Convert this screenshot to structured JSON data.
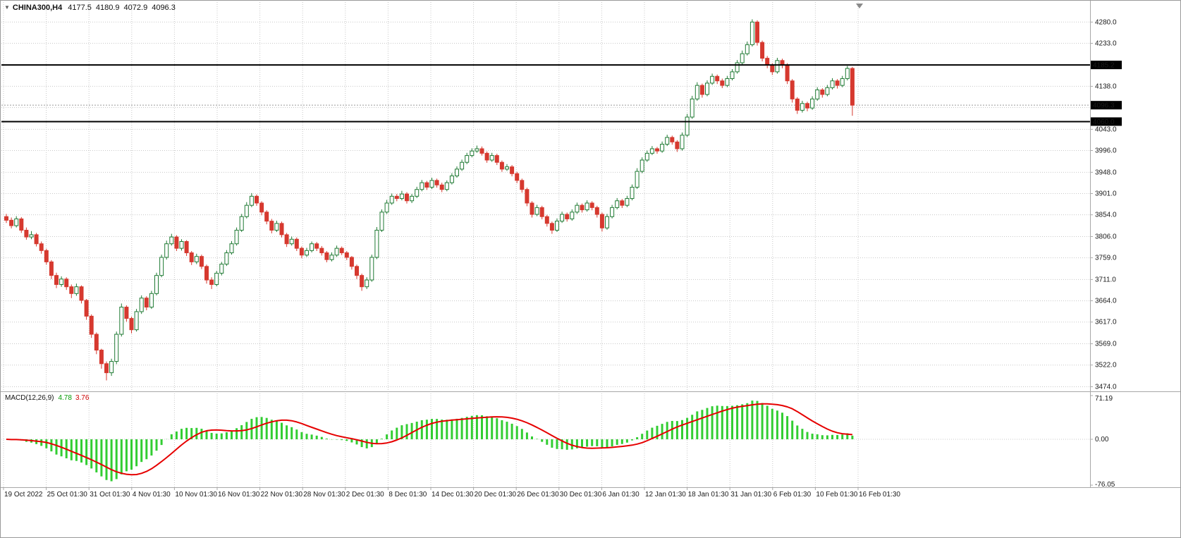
{
  "header": {
    "dropdown_icon": "triangle-down",
    "symbol_period": "CHINA300,H4",
    "open": "4177.5",
    "high": "4180.9",
    "low": "4072.9",
    "close": "4096.3"
  },
  "colors": {
    "background": "#ffffff",
    "grid": "#c8c8c8",
    "axis_line": "#a8a8a8",
    "text": "#1a1a1a",
    "candle_up_fill": "#ffffff",
    "candle_up_border": "#1f7a33",
    "candle_down_fill": "#d6392f",
    "candle_down_border": "#d6392f",
    "macd_histogram": "#32cd32",
    "macd_signal": "#e60000",
    "hline": "#000000",
    "bid_line": "#9a9a9a",
    "badge_bg": "#000000",
    "badge_text": "#ffffff",
    "shift_marker": "#8a8a8a"
  },
  "chart_data": {
    "type": "candlestick",
    "title": "CHINA300,H4",
    "symbol": "CHINA300",
    "timeframe": "H4",
    "ohlc_display": {
      "open": 4177.5,
      "high": 4180.9,
      "low": 4072.9,
      "close": 4096.3
    },
    "price_axis": {
      "max_visible": 4296,
      "min_visible": 3467,
      "gridlines": [
        {
          "v": 4280,
          "t": "4280.0"
        },
        {
          "v": 4233,
          "t": "4233.0"
        },
        {
          "v": 4185,
          "t": ""
        },
        {
          "v": 4138,
          "t": "4138.0"
        },
        {
          "v": 4091,
          "t": ""
        },
        {
          "v": 4043,
          "t": "4043.0"
        },
        {
          "v": 3996,
          "t": "3996.0"
        },
        {
          "v": 3948,
          "t": "3948.0"
        },
        {
          "v": 3901,
          "t": "3901.0"
        },
        {
          "v": 3854,
          "t": "3854.0"
        },
        {
          "v": 3806,
          "t": "3806.0"
        },
        {
          "v": 3759,
          "t": "3759.0"
        },
        {
          "v": 3711,
          "t": "3711.0"
        },
        {
          "v": 3664,
          "t": "3664.0"
        },
        {
          "v": 3617,
          "t": "3617.0"
        },
        {
          "v": 3569,
          "t": "3569.0"
        },
        {
          "v": 3522,
          "t": "3522.0"
        },
        {
          "v": 3474,
          "t": "3474.0"
        }
      ],
      "badges": [
        {
          "t": "4185.2",
          "v": 4185.2,
          "type": "hline-level"
        },
        {
          "t": "4096.3",
          "v": 4096.3,
          "type": "bid-price"
        },
        {
          "t": "4060.0",
          "v": 4060.0,
          "type": "hline-level"
        }
      ]
    },
    "hlines": [
      {
        "v": 4185.2
      },
      {
        "v": 4060.0
      }
    ],
    "bid_line": {
      "v": 4096.3
    },
    "time_axis": {
      "labels": [
        "19 Oct 2022",
        "25 Oct 01:30",
        "31 Oct 01:30",
        "4 Nov 01:30",
        "10 Nov 01:30",
        "16 Nov 01:30",
        "22 Nov 01:30",
        "28 Nov 01:30",
        "2 Dec 01:30",
        "8 Dec 01:30",
        "14 Dec 01:30",
        "20 Dec 01:30",
        "26 Dec 01:30",
        "30 Dec 01:30",
        "6 Jan 01:30",
        "12 Jan 01:30",
        "18 Jan 01:30",
        "31 Jan 01:30",
        "6 Feb 01:30",
        "10 Feb 01:30",
        "16 Feb 01:30"
      ]
    },
    "indicator": {
      "label": "MACD(12,26,9)",
      "value_main": "4.78",
      "value_signal": "3.76",
      "axis": [
        {
          "t": "71.19",
          "v": 71.19
        },
        {
          "t": "0.00",
          "v": 0
        },
        {
          "t": "-76.05",
          "v": -76.05
        }
      ]
    },
    "candles": [
      [
        3850,
        3856,
        3836,
        3842
      ],
      [
        3842,
        3848,
        3824,
        3830
      ],
      [
        3830,
        3851,
        3826,
        3845
      ],
      [
        3845,
        3849,
        3814,
        3820
      ],
      [
        3820,
        3826,
        3799,
        3805
      ],
      [
        3805,
        3818,
        3800,
        3810
      ],
      [
        3810,
        3814,
        3784,
        3790
      ],
      [
        3790,
        3795,
        3768,
        3775
      ],
      [
        3775,
        3779,
        3744,
        3750
      ],
      [
        3750,
        3754,
        3712,
        3720
      ],
      [
        3720,
        3726,
        3692,
        3700
      ],
      [
        3700,
        3718,
        3695,
        3712
      ],
      [
        3712,
        3716,
        3688,
        3695
      ],
      [
        3695,
        3700,
        3670,
        3680
      ],
      [
        3680,
        3702,
        3675,
        3695
      ],
      [
        3695,
        3698,
        3658,
        3665
      ],
      [
        3665,
        3668,
        3622,
        3630
      ],
      [
        3630,
        3634,
        3582,
        3590
      ],
      [
        3590,
        3594,
        3546,
        3555
      ],
      [
        3555,
        3558,
        3514,
        3525
      ],
      [
        3525,
        3530,
        3488,
        3505
      ],
      [
        3505,
        3536,
        3498,
        3530
      ],
      [
        3530,
        3596,
        3524,
        3590
      ],
      [
        3590,
        3658,
        3585,
        3650
      ],
      [
        3650,
        3654,
        3618,
        3625
      ],
      [
        3625,
        3629,
        3592,
        3600
      ],
      [
        3600,
        3646,
        3596,
        3640
      ],
      [
        3640,
        3676,
        3635,
        3670
      ],
      [
        3670,
        3674,
        3643,
        3650
      ],
      [
        3650,
        3686,
        3646,
        3680
      ],
      [
        3680,
        3726,
        3676,
        3720
      ],
      [
        3720,
        3766,
        3716,
        3760
      ],
      [
        3760,
        3797,
        3755,
        3790
      ],
      [
        3790,
        3812,
        3786,
        3805
      ],
      [
        3805,
        3809,
        3774,
        3780
      ],
      [
        3780,
        3800,
        3775,
        3795
      ],
      [
        3795,
        3798,
        3763,
        3770
      ],
      [
        3770,
        3774,
        3743,
        3750
      ],
      [
        3750,
        3768,
        3745,
        3762
      ],
      [
        3762,
        3766,
        3734,
        3740
      ],
      [
        3740,
        3744,
        3702,
        3710
      ],
      [
        3710,
        3716,
        3690,
        3700
      ],
      [
        3700,
        3730,
        3696,
        3725
      ],
      [
        3725,
        3750,
        3720,
        3745
      ],
      [
        3745,
        3776,
        3741,
        3770
      ],
      [
        3770,
        3796,
        3766,
        3790
      ],
      [
        3790,
        3826,
        3786,
        3820
      ],
      [
        3820,
        3856,
        3816,
        3850
      ],
      [
        3850,
        3882,
        3846,
        3875
      ],
      [
        3875,
        3902,
        3871,
        3895
      ],
      [
        3895,
        3899,
        3874,
        3880
      ],
      [
        3880,
        3884,
        3853,
        3860
      ],
      [
        3860,
        3864,
        3833,
        3840
      ],
      [
        3840,
        3845,
        3813,
        3820
      ],
      [
        3820,
        3841,
        3816,
        3835
      ],
      [
        3835,
        3839,
        3804,
        3810
      ],
      [
        3810,
        3814,
        3783,
        3790
      ],
      [
        3790,
        3806,
        3786,
        3800
      ],
      [
        3800,
        3804,
        3774,
        3780
      ],
      [
        3780,
        3784,
        3758,
        3765
      ],
      [
        3765,
        3781,
        3761,
        3775
      ],
      [
        3775,
        3795,
        3771,
        3790
      ],
      [
        3790,
        3794,
        3774,
        3780
      ],
      [
        3780,
        3785,
        3764,
        3770
      ],
      [
        3770,
        3774,
        3749,
        3755
      ],
      [
        3755,
        3771,
        3751,
        3765
      ],
      [
        3765,
        3786,
        3761,
        3780
      ],
      [
        3780,
        3784,
        3765,
        3770
      ],
      [
        3770,
        3774,
        3754,
        3760
      ],
      [
        3760,
        3763,
        3733,
        3740
      ],
      [
        3740,
        3744,
        3712,
        3720
      ],
      [
        3720,
        3724,
        3686,
        3695
      ],
      [
        3695,
        3716,
        3690,
        3710
      ],
      [
        3710,
        3766,
        3706,
        3760
      ],
      [
        3760,
        3827,
        3756,
        3820
      ],
      [
        3820,
        3866,
        3816,
        3860
      ],
      [
        3860,
        3887,
        3856,
        3880
      ],
      [
        3880,
        3901,
        3876,
        3895
      ],
      [
        3895,
        3900,
        3884,
        3890
      ],
      [
        3890,
        3907,
        3886,
        3900
      ],
      [
        3900,
        3904,
        3879,
        3885
      ],
      [
        3885,
        3900,
        3880,
        3895
      ],
      [
        3895,
        3916,
        3891,
        3910
      ],
      [
        3910,
        3931,
        3906,
        3925
      ],
      [
        3925,
        3929,
        3909,
        3915
      ],
      [
        3915,
        3936,
        3911,
        3930
      ],
      [
        3930,
        3934,
        3914,
        3920
      ],
      [
        3920,
        3925,
        3904,
        3910
      ],
      [
        3910,
        3930,
        3906,
        3925
      ],
      [
        3925,
        3946,
        3921,
        3940
      ],
      [
        3940,
        3961,
        3936,
        3955
      ],
      [
        3955,
        3976,
        3951,
        3970
      ],
      [
        3970,
        3991,
        3966,
        3985
      ],
      [
        3985,
        4001,
        3981,
        3995
      ],
      [
        3995,
        4007,
        3991,
        4000
      ],
      [
        4000,
        4005,
        3985,
        3990
      ],
      [
        3990,
        3994,
        3969,
        3975
      ],
      [
        3975,
        3991,
        3971,
        3985
      ],
      [
        3985,
        3989,
        3964,
        3970
      ],
      [
        3970,
        3974,
        3949,
        3955
      ],
      [
        3955,
        3966,
        3951,
        3960
      ],
      [
        3960,
        3964,
        3939,
        3945
      ],
      [
        3945,
        3949,
        3924,
        3930
      ],
      [
        3930,
        3934,
        3903,
        3910
      ],
      [
        3910,
        3914,
        3873,
        3880
      ],
      [
        3880,
        3884,
        3848,
        3855
      ],
      [
        3855,
        3876,
        3851,
        3870
      ],
      [
        3870,
        3874,
        3844,
        3850
      ],
      [
        3850,
        3854,
        3828,
        3835
      ],
      [
        3835,
        3839,
        3812,
        3820
      ],
      [
        3820,
        3846,
        3816,
        3840
      ],
      [
        3840,
        3861,
        3836,
        3855
      ],
      [
        3855,
        3859,
        3839,
        3845
      ],
      [
        3845,
        3866,
        3841,
        3860
      ],
      [
        3860,
        3881,
        3856,
        3875
      ],
      [
        3875,
        3879,
        3859,
        3865
      ],
      [
        3865,
        3886,
        3861,
        3880
      ],
      [
        3880,
        3884,
        3864,
        3870
      ],
      [
        3870,
        3874,
        3848,
        3855
      ],
      [
        3855,
        3859,
        3817,
        3825
      ],
      [
        3825,
        3856,
        3821,
        3850
      ],
      [
        3850,
        3876,
        3846,
        3870
      ],
      [
        3870,
        3891,
        3866,
        3885
      ],
      [
        3885,
        3889,
        3869,
        3875
      ],
      [
        3875,
        3896,
        3871,
        3890
      ],
      [
        3890,
        3921,
        3886,
        3915
      ],
      [
        3915,
        3957,
        3911,
        3950
      ],
      [
        3950,
        3981,
        3946,
        3975
      ],
      [
        3975,
        3996,
        3971,
        3990
      ],
      [
        3990,
        4006,
        3986,
        4000
      ],
      [
        4000,
        4004,
        3989,
        3995
      ],
      [
        3995,
        4016,
        3991,
        4010
      ],
      [
        4010,
        4031,
        4006,
        4025
      ],
      [
        4025,
        4029,
        4009,
        4015
      ],
      [
        4015,
        4019,
        3993,
        4000
      ],
      [
        4000,
        4036,
        3996,
        4030
      ],
      [
        4030,
        4077,
        4026,
        4070
      ],
      [
        4070,
        4117,
        4066,
        4110
      ],
      [
        4110,
        4147,
        4106,
        4140
      ],
      [
        4140,
        4144,
        4113,
        4120
      ],
      [
        4120,
        4151,
        4116,
        4145
      ],
      [
        4145,
        4166,
        4141,
        4160
      ],
      [
        4160,
        4164,
        4143,
        4150
      ],
      [
        4150,
        4155,
        4134,
        4140
      ],
      [
        4140,
        4161,
        4136,
        4155
      ],
      [
        4155,
        4176,
        4151,
        4170
      ],
      [
        4170,
        4196,
        4166,
        4190
      ],
      [
        4190,
        4217,
        4186,
        4210
      ],
      [
        4210,
        4237,
        4206,
        4230
      ],
      [
        4230,
        4286,
        4226,
        4280
      ],
      [
        4280,
        4284,
        4228,
        4235
      ],
      [
        4235,
        4239,
        4193,
        4200
      ],
      [
        4200,
        4205,
        4178,
        4185
      ],
      [
        4185,
        4189,
        4163,
        4170
      ],
      [
        4170,
        4201,
        4166,
        4195
      ],
      [
        4195,
        4199,
        4178,
        4185
      ],
      [
        4185,
        4189,
        4143,
        4150
      ],
      [
        4150,
        4154,
        4102,
        4110
      ],
      [
        4110,
        4114,
        4077,
        4085
      ],
      [
        4085,
        4106,
        4080,
        4100
      ],
      [
        4100,
        4104,
        4083,
        4090
      ],
      [
        4090,
        4116,
        4086,
        4110
      ],
      [
        4110,
        4136,
        4106,
        4130
      ],
      [
        4130,
        4134,
        4113,
        4120
      ],
      [
        4120,
        4141,
        4116,
        4135
      ],
      [
        4135,
        4156,
        4131,
        4150
      ],
      [
        4150,
        4154,
        4133,
        4140
      ],
      [
        4140,
        4161,
        4136,
        4155
      ],
      [
        4155,
        4183,
        4151,
        4177.5
      ],
      [
        4177.5,
        4180.9,
        4072.9,
        4096.3
      ]
    ]
  }
}
